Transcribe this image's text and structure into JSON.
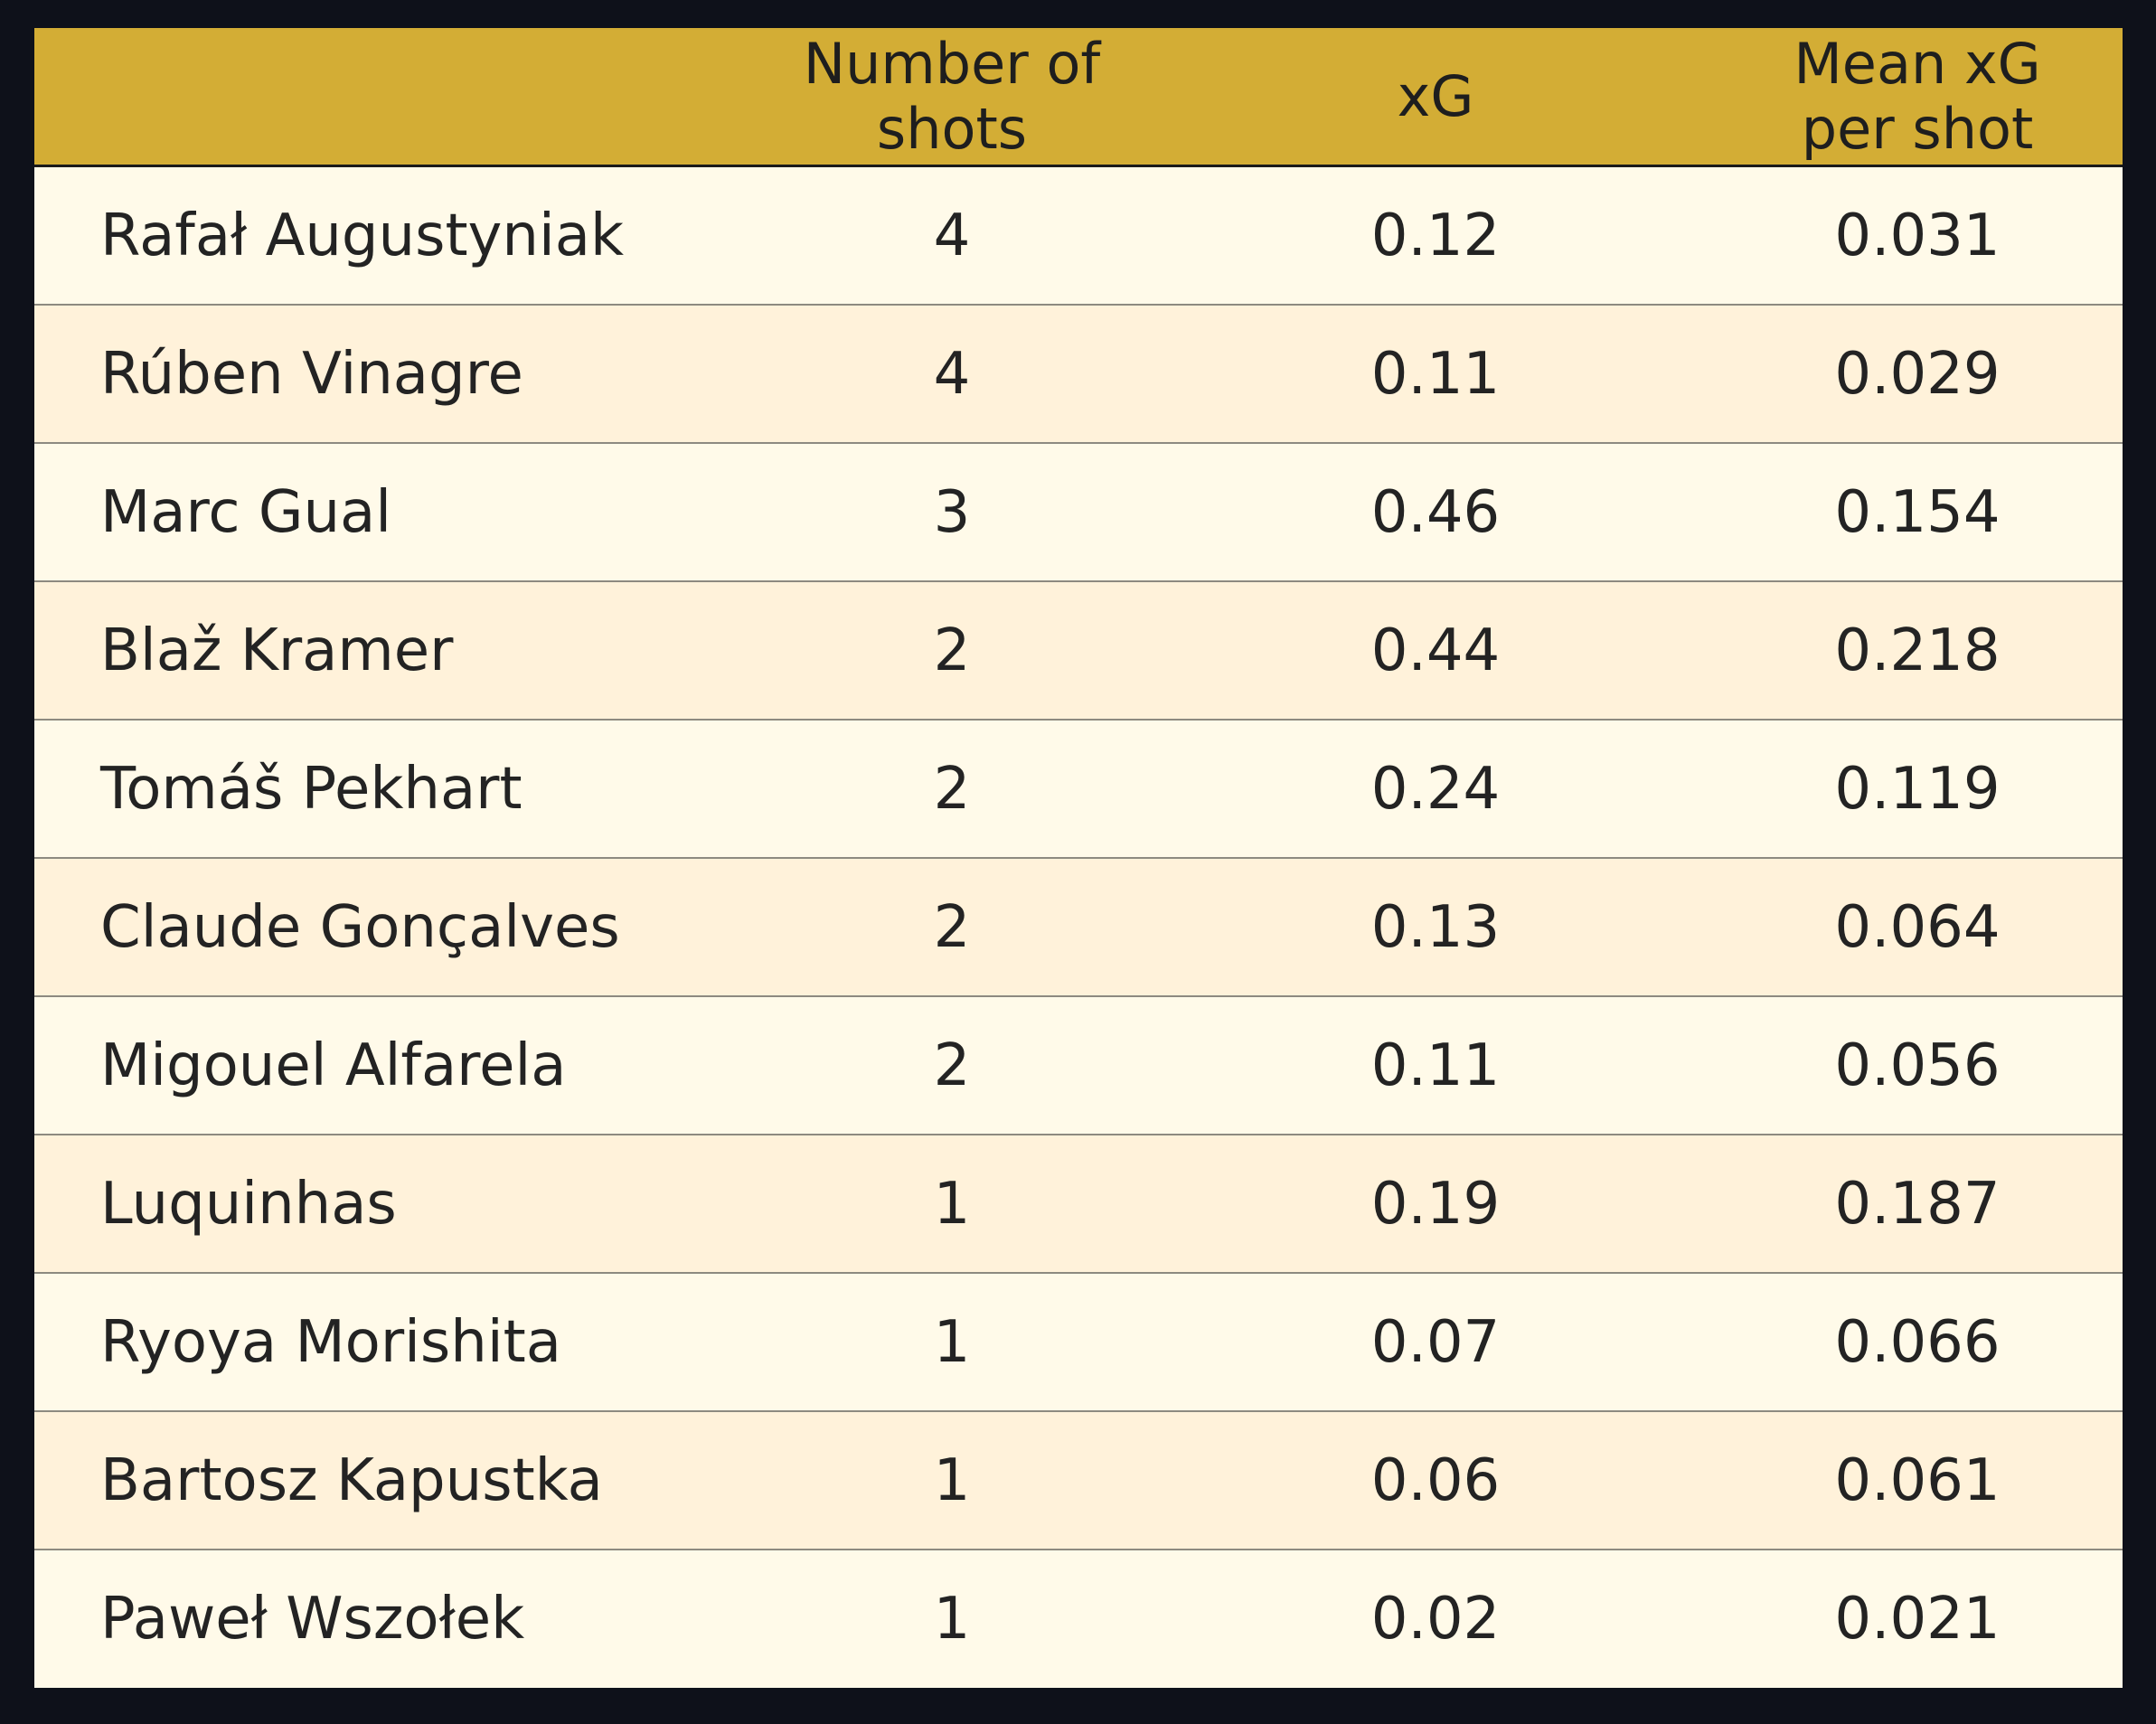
{
  "chart_data": {
    "type": "table",
    "columns": [
      "",
      "Number of shots",
      "xG",
      "Mean xG per shot"
    ],
    "header": {
      "player": "",
      "shots": "Number of shots",
      "xg": "xG",
      "mean": "Mean xG per shot"
    },
    "rows": [
      {
        "player": "Rafał Augustyniak",
        "shots": "4",
        "xg": "0.12",
        "mean": "0.031"
      },
      {
        "player": "Rúben Vinagre",
        "shots": "4",
        "xg": "0.11",
        "mean": "0.029"
      },
      {
        "player": "Marc Gual",
        "shots": "3",
        "xg": "0.46",
        "mean": "0.154"
      },
      {
        "player": "Blaž Kramer",
        "shots": "2",
        "xg": "0.44",
        "mean": "0.218"
      },
      {
        "player": "Tomáš Pekhart",
        "shots": "2",
        "xg": "0.24",
        "mean": "0.119"
      },
      {
        "player": "Claude Gonçalves",
        "shots": "2",
        "xg": "0.13",
        "mean": "0.064"
      },
      {
        "player": "Migouel Alfarela",
        "shots": "2",
        "xg": "0.11",
        "mean": "0.056"
      },
      {
        "player": "Luquinhas",
        "shots": "1",
        "xg": "0.19",
        "mean": "0.187"
      },
      {
        "player": "Ryoya Morishita",
        "shots": "1",
        "xg": "0.07",
        "mean": "0.066"
      },
      {
        "player": "Bartosz Kapustka",
        "shots": "1",
        "xg": "0.06",
        "mean": "0.061"
      },
      {
        "player": "Paweł Wszołek",
        "shots": "1",
        "xg": "0.02",
        "mean": "0.021"
      }
    ]
  },
  "colors": {
    "background": "#0e111a",
    "header": "#d3ad35",
    "row_light": "#fffae9",
    "row_dark": "#fff2da",
    "text": "#232323"
  }
}
